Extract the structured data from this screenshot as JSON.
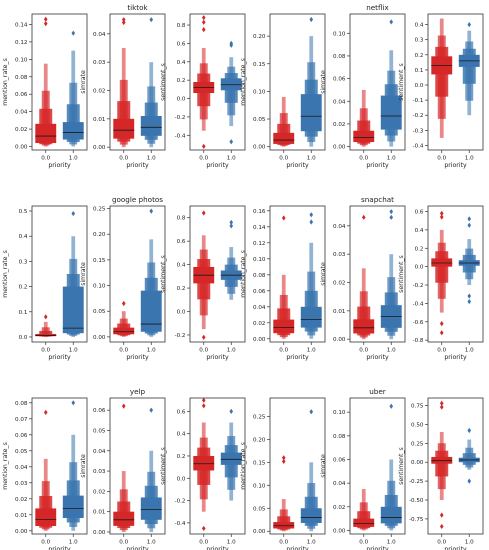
{
  "colors": {
    "red": "#d62728",
    "blue": "#3b75af",
    "axis": "#333333"
  },
  "chart_data": [
    {
      "type": "boxen",
      "title": "",
      "xlabel": "priority",
      "ylabel": "mention_rate_s",
      "categories": [
        "0.0",
        "1.0"
      ],
      "yticks": [
        "0.00",
        "0.02",
        "0.04",
        "0.06",
        "0.08",
        "0.10",
        "0.12",
        "0.14"
      ],
      "ylim": [
        -0.004,
        0.152
      ],
      "series": [
        {
          "min": 0.0,
          "q1": 0.004,
          "median": 0.012,
          "q3": 0.026,
          "max": 0.095,
          "outliers": [
            0.146,
            0.141
          ]
        },
        {
          "min": 0.0,
          "q1": 0.008,
          "median": 0.016,
          "q3": 0.028,
          "max": 0.11,
          "outliers": [
            0.13
          ]
        }
      ]
    },
    {
      "type": "boxen",
      "title": "tiktok",
      "xlabel": "priority",
      "ylabel": "simrate",
      "categories": [
        "0.0",
        "1.0"
      ],
      "yticks": [
        "0.00",
        "0.01",
        "0.02",
        "0.03",
        "0.04"
      ],
      "ylim": [
        -0.001,
        0.047
      ],
      "series": [
        {
          "min": 0.0,
          "q1": 0.003,
          "median": 0.006,
          "q3": 0.01,
          "max": 0.035,
          "outliers": [
            0.045,
            0.044
          ]
        },
        {
          "min": 0.0,
          "q1": 0.004,
          "median": 0.007,
          "q3": 0.011,
          "max": 0.03,
          "outliers": [
            0.045
          ]
        }
      ]
    },
    {
      "type": "boxen",
      "title": "",
      "xlabel": "priority",
      "ylabel": "sentiment_s",
      "categories": [
        "0.0",
        "1.0"
      ],
      "yticks": [
        "-0.4",
        "-0.2",
        "0.0",
        "0.2",
        "0.4",
        "0.6",
        "0.8"
      ],
      "ylim": [
        -0.56,
        0.92
      ],
      "series": [
        {
          "min": -0.35,
          "q1": 0.06,
          "median": 0.12,
          "q3": 0.18,
          "max": 0.55,
          "outliers": [
            0.88,
            0.83,
            0.75,
            -0.52
          ]
        },
        {
          "min": -0.3,
          "q1": 0.09,
          "median": 0.15,
          "q3": 0.22,
          "max": 0.45,
          "outliers": [
            0.6,
            0.58,
            -0.47
          ]
        }
      ]
    },
    {
      "type": "boxen",
      "title": "",
      "xlabel": "priority",
      "ylabel": "mention_rate_s",
      "categories": [
        "0.0",
        "1.0"
      ],
      "yticks": [
        "0.00",
        "0.05",
        "0.10",
        "0.15",
        "0.20"
      ],
      "ylim": [
        -0.006,
        0.24
      ],
      "series": [
        {
          "min": 0.0,
          "q1": 0.005,
          "median": 0.012,
          "q3": 0.025,
          "max": 0.09,
          "outliers": []
        },
        {
          "min": 0.0,
          "q1": 0.028,
          "median": 0.055,
          "q3": 0.095,
          "max": 0.2,
          "outliers": [
            0.23
          ]
        }
      ]
    },
    {
      "type": "boxen",
      "title": "netflix",
      "xlabel": "priority",
      "ylabel": "simrate",
      "categories": [
        "0.0",
        "1.0"
      ],
      "yticks": [
        "0.00",
        "0.02",
        "0.04",
        "0.06",
        "0.08",
        "0.10"
      ],
      "ylim": [
        -0.003,
        0.117
      ],
      "series": [
        {
          "min": 0.0,
          "q1": 0.004,
          "median": 0.008,
          "q3": 0.014,
          "max": 0.05,
          "outliers": []
        },
        {
          "min": 0.0,
          "q1": 0.015,
          "median": 0.027,
          "q3": 0.045,
          "max": 0.085,
          "outliers": [
            0.11
          ]
        }
      ]
    },
    {
      "type": "boxen",
      "title": "",
      "xlabel": "priority",
      "ylabel": "sentiment_s",
      "categories": [
        "0.0",
        "1.0"
      ],
      "yticks": [
        "-0.4",
        "-0.3",
        "-0.2",
        "-0.1",
        "0.0",
        "0.1",
        "0.2",
        "0.3",
        "0.4"
      ],
      "ylim": [
        -0.43,
        0.47
      ],
      "series": [
        {
          "min": -0.35,
          "q1": 0.07,
          "median": 0.13,
          "q3": 0.19,
          "max": 0.44,
          "outliers": []
        },
        {
          "min": -0.2,
          "q1": 0.12,
          "median": 0.16,
          "q3": 0.2,
          "max": 0.36,
          "outliers": [
            0.4
          ]
        }
      ]
    },
    {
      "type": "boxen",
      "title": "",
      "xlabel": "priority",
      "ylabel": "mention_rate_s",
      "categories": [
        "0.0",
        "1.0"
      ],
      "yticks": [
        "0.0",
        "0.1",
        "0.2",
        "0.3",
        "0.4",
        "0.5"
      ],
      "ylim": [
        -0.02,
        0.52
      ],
      "series": [
        {
          "min": 0.0,
          "q1": 0.003,
          "median": 0.006,
          "q3": 0.012,
          "max": 0.06,
          "outliers": [
            0.08
          ]
        },
        {
          "min": 0.0,
          "q1": 0.015,
          "median": 0.035,
          "q3": 0.2,
          "max": 0.4,
          "outliers": [
            0.49
          ]
        }
      ]
    },
    {
      "type": "boxen",
      "title": "google photos",
      "xlabel": "priority",
      "ylabel": "simrate",
      "categories": [
        "0.0",
        "1.0"
      ],
      "yticks": [
        "0.00",
        "0.05",
        "0.10",
        "0.15",
        "0.20",
        "0.25"
      ],
      "ylim": [
        -0.01,
        0.255
      ],
      "series": [
        {
          "min": 0.0,
          "q1": 0.005,
          "median": 0.01,
          "q3": 0.018,
          "max": 0.05,
          "outliers": [
            0.065
          ]
        },
        {
          "min": 0.0,
          "q1": 0.01,
          "median": 0.025,
          "q3": 0.09,
          "max": 0.19,
          "outliers": [
            0.245
          ]
        }
      ]
    },
    {
      "type": "boxen",
      "title": "",
      "xlabel": "priority",
      "ylabel": "sentiment_s",
      "categories": [
        "0.0",
        "1.0"
      ],
      "yticks": [
        "-0.2",
        "0.0",
        "0.2",
        "0.4",
        "0.6",
        "0.8"
      ],
      "ylim": [
        -0.26,
        0.9
      ],
      "series": [
        {
          "min": -0.15,
          "q1": 0.24,
          "median": 0.31,
          "q3": 0.38,
          "max": 0.65,
          "outliers": [
            0.84,
            -0.22
          ]
        },
        {
          "min": 0.1,
          "q1": 0.27,
          "median": 0.31,
          "q3": 0.35,
          "max": 0.55,
          "outliers": [
            0.76,
            0.73
          ]
        }
      ]
    },
    {
      "type": "boxen",
      "title": "",
      "xlabel": "priority",
      "ylabel": "mention_rate_s",
      "categories": [
        "0.0",
        "1.0"
      ],
      "yticks": [
        "0.00",
        "0.02",
        "0.04",
        "0.06",
        "0.08",
        "0.10",
        "0.12",
        "0.14",
        "0.16"
      ],
      "ylim": [
        -0.004,
        0.166
      ],
      "series": [
        {
          "min": 0.0,
          "q1": 0.007,
          "median": 0.014,
          "q3": 0.024,
          "max": 0.08,
          "outliers": [
            0.151
          ]
        },
        {
          "min": 0.0,
          "q1": 0.014,
          "median": 0.024,
          "q3": 0.04,
          "max": 0.12,
          "outliers": [
            0.155,
            0.146
          ]
        }
      ]
    },
    {
      "type": "boxen",
      "title": "snapchat",
      "xlabel": "priority",
      "ylabel": "simrate",
      "categories": [
        "0.0",
        "1.0"
      ],
      "yticks": [
        "0.00",
        "0.01",
        "0.02",
        "0.03",
        "0.04"
      ],
      "ylim": [
        -0.001,
        0.047
      ],
      "series": [
        {
          "min": 0.0,
          "q1": 0.002,
          "median": 0.004,
          "q3": 0.007,
          "max": 0.025,
          "outliers": [
            0.043
          ]
        },
        {
          "min": 0.0,
          "q1": 0.004,
          "median": 0.008,
          "q3": 0.012,
          "max": 0.03,
          "outliers": [
            0.045,
            0.043
          ]
        }
      ]
    },
    {
      "type": "boxen",
      "title": "",
      "xlabel": "priority",
      "ylabel": "sentiment_s",
      "categories": [
        "0.0",
        "1.0"
      ],
      "yticks": [
        "-0.8",
        "-0.6",
        "-0.4",
        "-0.2",
        "0.0",
        "0.2",
        "0.4",
        "0.6"
      ],
      "ylim": [
        -0.82,
        0.66
      ],
      "series": [
        {
          "min": -0.5,
          "q1": 0.0,
          "median": 0.04,
          "q3": 0.09,
          "max": 0.4,
          "outliers": [
            0.58,
            0.54,
            -0.62,
            -0.72
          ]
        },
        {
          "min": -0.2,
          "q1": 0.01,
          "median": 0.04,
          "q3": 0.07,
          "max": 0.3,
          "outliers": [
            0.52,
            0.45,
            -0.32,
            -0.38
          ]
        }
      ]
    },
    {
      "type": "boxen",
      "title": "",
      "xlabel": "priority",
      "ylabel": "mention_rate_s",
      "categories": [
        "0.0",
        "1.0"
      ],
      "yticks": [
        "0.00",
        "0.01",
        "0.02",
        "0.03",
        "0.04",
        "0.05",
        "0.06",
        "0.07",
        "0.08"
      ],
      "ylim": [
        -0.002,
        0.083
      ],
      "series": [
        {
          "min": 0.0,
          "q1": 0.003,
          "median": 0.007,
          "q3": 0.014,
          "max": 0.045,
          "outliers": [
            0.074
          ]
        },
        {
          "min": 0.0,
          "q1": 0.008,
          "median": 0.014,
          "q3": 0.022,
          "max": 0.06,
          "outliers": [
            0.08
          ]
        }
      ]
    },
    {
      "type": "boxen",
      "title": "yelp",
      "xlabel": "priority",
      "ylabel": "simrate",
      "categories": [
        "0.0",
        "1.0"
      ],
      "yticks": [
        "0.00",
        "0.01",
        "0.02",
        "0.03",
        "0.04",
        "0.05",
        "0.06"
      ],
      "ylim": [
        -0.001,
        0.066
      ],
      "series": [
        {
          "min": 0.0,
          "q1": 0.003,
          "median": 0.006,
          "q3": 0.01,
          "max": 0.03,
          "outliers": [
            0.062
          ]
        },
        {
          "min": 0.0,
          "q1": 0.006,
          "median": 0.011,
          "q3": 0.017,
          "max": 0.04,
          "outliers": [
            0.06
          ]
        }
      ]
    },
    {
      "type": "boxen",
      "title": "",
      "xlabel": "priority",
      "ylabel": "sentiment_s",
      "categories": [
        "0.0",
        "1.0"
      ],
      "yticks": [
        "-0.4",
        "-0.2",
        "0.0",
        "0.2",
        "0.4",
        "0.6"
      ],
      "ylim": [
        -0.5,
        0.72
      ],
      "series": [
        {
          "min": -0.3,
          "q1": 0.07,
          "median": 0.13,
          "q3": 0.2,
          "max": 0.5,
          "outliers": [
            0.7,
            0.65,
            -0.45
          ]
        },
        {
          "min": -0.2,
          "q1": 0.12,
          "median": 0.17,
          "q3": 0.23,
          "max": 0.5,
          "outliers": [
            0.6
          ]
        }
      ]
    },
    {
      "type": "boxen",
      "title": "",
      "xlabel": "priority",
      "ylabel": "mention_rate_s",
      "categories": [
        "0.0",
        "1.0"
      ],
      "yticks": [
        "0.00",
        "0.05",
        "0.10",
        "0.15",
        "0.20",
        "0.25"
      ],
      "ylim": [
        -0.006,
        0.29
      ],
      "series": [
        {
          "min": 0.0,
          "q1": 0.006,
          "median": 0.012,
          "q3": 0.02,
          "max": 0.07,
          "outliers": [
            0.16,
            0.152
          ]
        },
        {
          "min": 0.0,
          "q1": 0.018,
          "median": 0.03,
          "q3": 0.05,
          "max": 0.15,
          "outliers": [
            0.26
          ]
        }
      ]
    },
    {
      "type": "boxen",
      "title": "uber",
      "xlabel": "priority",
      "ylabel": "simrate",
      "categories": [
        "0.0",
        "1.0"
      ],
      "yticks": [
        "0.00",
        "0.02",
        "0.04",
        "0.06",
        "0.08",
        "0.10"
      ],
      "ylim": [
        -0.003,
        0.112
      ],
      "series": [
        {
          "min": 0.0,
          "q1": 0.003,
          "median": 0.006,
          "q3": 0.01,
          "max": 0.035,
          "outliers": []
        },
        {
          "min": 0.0,
          "q1": 0.006,
          "median": 0.011,
          "q3": 0.02,
          "max": 0.06,
          "outliers": [
            0.105
          ]
        }
      ]
    },
    {
      "type": "boxen",
      "title": "",
      "xlabel": "priority",
      "ylabel": "sentiment_s",
      "categories": [
        "0.0",
        "1.0"
      ],
      "yticks": [
        "-0.75",
        "-0.50",
        "-0.25",
        "0.00",
        "0.25",
        "0.50",
        "0.75"
      ],
      "ylim": [
        -0.95,
        0.85
      ],
      "series": [
        {
          "min": -0.5,
          "q1": -0.02,
          "median": 0.02,
          "q3": 0.07,
          "max": 0.4,
          "outliers": [
            0.78,
            0.73,
            -0.7,
            -0.85
          ]
        },
        {
          "min": -0.1,
          "q1": 0.0,
          "median": 0.03,
          "q3": 0.06,
          "max": 0.3,
          "outliers": [
            0.42,
            -0.25
          ]
        }
      ]
    }
  ]
}
